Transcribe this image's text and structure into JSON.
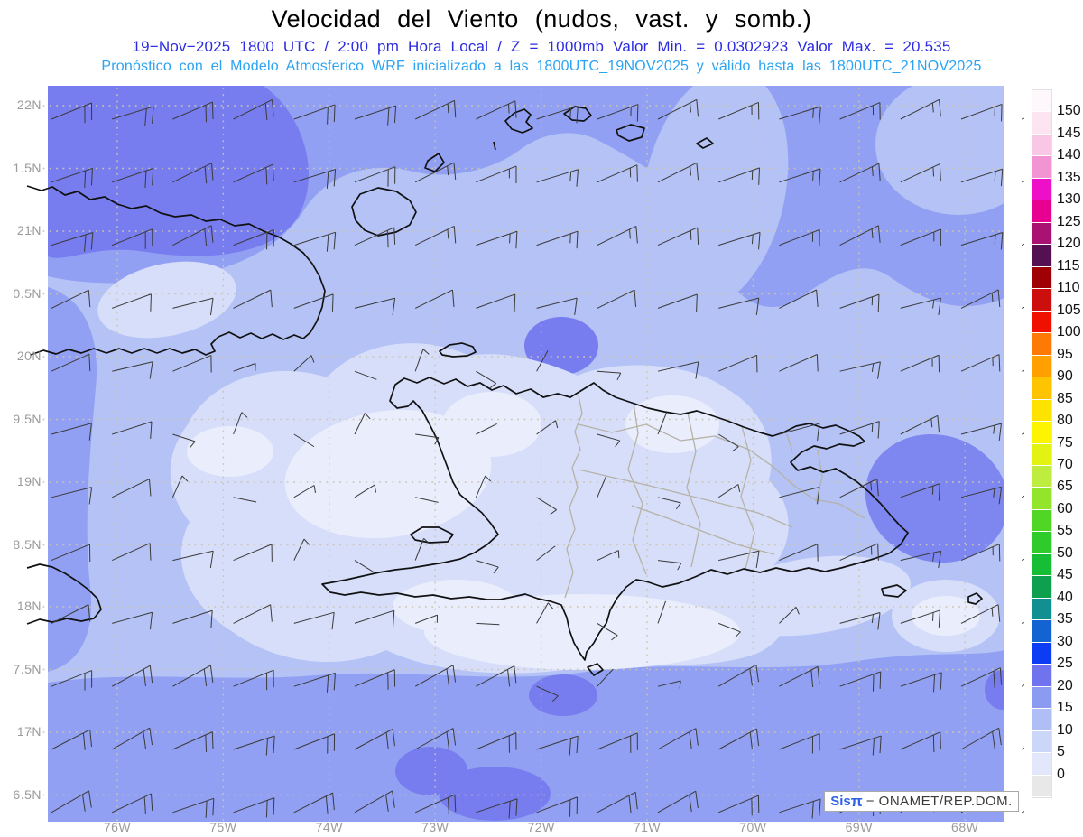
{
  "header": {
    "title": "Velocidad del Viento (nudos, vast. y somb.)",
    "line2": "19−Nov−2025  1800 UTC / 2:00 pm Hora Local / Z = 1000mb   Valor Min. = 0.0302923   Valor Max. = 20.535",
    "line3": "Pronóstico con el Modelo Atmosferico WRF inicializado a las 1800UTC_19NOV2025 y válido hasta las  1800UTC_21NOV2025",
    "line2_color": "#2b2be2",
    "line3_color": "#2ba3f2"
  },
  "map": {
    "lat_labels": [
      "22N",
      "1.5N",
      "21N",
      "0.5N",
      "20N",
      "9.5N",
      "19N",
      "8.5N",
      "18N",
      "7.5N",
      "17N",
      "6.5N"
    ],
    "lon_labels": [
      "76W",
      "75W",
      "74W",
      "73W",
      "72W",
      "71W",
      "70W",
      "69W",
      "68W"
    ],
    "shade_colors": {
      "t0": "#e9edfc",
      "t1": "#d7defa",
      "t2": "#b4c2f6",
      "t3": "#91a0f3",
      "t35": "#7e86f0",
      "t4": "#777cee"
    },
    "coastline_color": "#111111",
    "province_border_color": "#b5b2a6",
    "gridline_color": "#ccc5ad",
    "barb_color": "#3a3a3a"
  },
  "colorbar": {
    "tick_labels": [
      "150",
      "145",
      "140",
      "135",
      "130",
      "125",
      "120",
      "115",
      "110",
      "105",
      "100",
      "95",
      "90",
      "85",
      "80",
      "75",
      "70",
      "65",
      "60",
      "55",
      "50",
      "45",
      "40",
      "35",
      "30",
      "25",
      "20",
      "15",
      "10",
      "5",
      "0"
    ],
    "cell_colors": [
      "#fef7fb",
      "#fce4f1",
      "#f9c6e6",
      "#f294d2",
      "#ee10c9",
      "#e80090",
      "#a91273",
      "#551052",
      "#9e0004",
      "#cc0f0d",
      "#f01000",
      "#ff7a05",
      "#ffa000",
      "#ffc400",
      "#ffe300",
      "#fdf400",
      "#e2f312",
      "#beec3f",
      "#93e52c",
      "#52d625",
      "#2fcb2b",
      "#15be34",
      "#0ea04e",
      "#128f90",
      "#1463d2",
      "#0d3df2",
      "#6f74ee",
      "#8c9bf2",
      "#afbff5",
      "#cbd6f8",
      "#e2e7fb",
      "#e8e8e8"
    ]
  },
  "watermark": {
    "brand": "Sis",
    "pi": "π",
    "rest": "− ONAMET/REP.DOM.",
    "brand_color": "#2e63e8",
    "text_color": "#3a3a3a"
  },
  "chart_data": {
    "type": "heatmap",
    "title": "Velocidad del Viento (nudos, vast. y somb.)",
    "units": "nudos",
    "level": "1000mb",
    "valid_time": "19-Nov-2025 1800 UTC / 2:00 pm Hora Local",
    "model": "WRF inicializado 1800UTC_19NOV2025, válido hasta 1800UTC_21NOV2025",
    "value_min": 0.0302923,
    "value_max": 20.535,
    "scale_step": 5,
    "scale_min": 0,
    "scale_max": 150,
    "lat_labels_shown": [
      "22N",
      "1.5N",
      "21N",
      "0.5N",
      "20N",
      "9.5N",
      "19N",
      "8.5N",
      "18N",
      "7.5N",
      "17N",
      "6.5N"
    ],
    "lon_labels_shown": [
      "76W",
      "75W",
      "74W",
      "73W",
      "72W",
      "71W",
      "70W",
      "69W",
      "68W"
    ],
    "legend_position": "right"
  }
}
